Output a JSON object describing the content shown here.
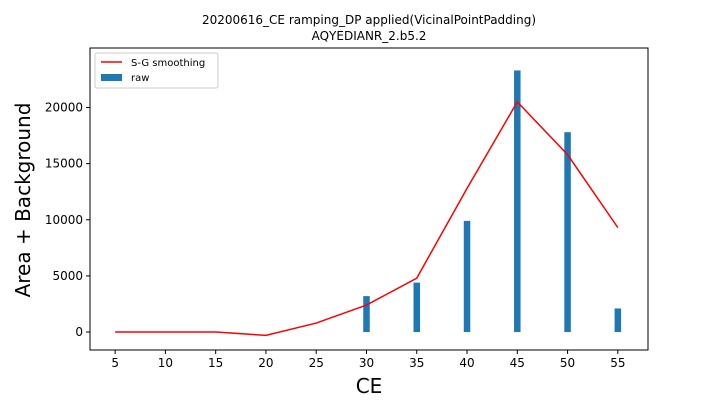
{
  "chart_data": {
    "type": "bar",
    "title": [
      "20200616_CE ramping_DP applied(VicinalPointPadding)",
      "AQYEDIANR_2.b5.2"
    ],
    "xlabel": "CE",
    "ylabel": "Area + Background",
    "x": [
      5,
      10,
      15,
      20,
      25,
      30,
      35,
      40,
      45,
      50,
      55
    ],
    "x_ticks": [
      "5",
      "10",
      "15",
      "20",
      "25",
      "30",
      "35",
      "40",
      "45",
      "50",
      "55"
    ],
    "y_ticks": [
      "0",
      "5000",
      "10000",
      "15000",
      "20000"
    ],
    "xlim": [
      2.5,
      58
    ],
    "ylim": [
      -1600,
      25300
    ],
    "legend_position": "top-left",
    "series": [
      {
        "name": "S-G smoothing",
        "kind": "line",
        "color": "#ff0000",
        "values": [
          0,
          0,
          0,
          -300,
          800,
          2400,
          4800,
          12800,
          20500,
          15800,
          9300
        ]
      },
      {
        "name": "raw",
        "kind": "bar",
        "color": "#1f77b4",
        "values": [
          0,
          0,
          0,
          0,
          0,
          3200,
          4400,
          9900,
          23300,
          17800,
          2100
        ]
      }
    ]
  }
}
